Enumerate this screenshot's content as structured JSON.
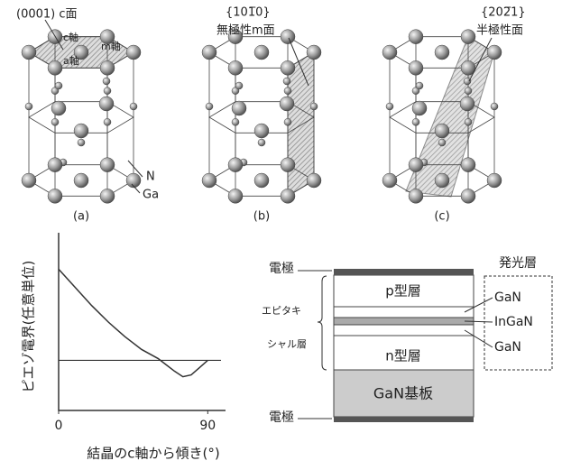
{
  "crystals": [
    {
      "label": "(a)",
      "plane": "(0001) c面",
      "axes": [
        "c軸",
        "m軸",
        "a軸"
      ],
      "atoms": [
        "N",
        "Ga"
      ]
    },
    {
      "label": "(b)",
      "plane": "{101̅0}",
      "plane_name": "無極性m面"
    },
    {
      "label": "(c)",
      "plane": "{202̅1}",
      "plane_name": "半極性面"
    }
  ],
  "chart_data": {
    "type": "line",
    "y_label": "ピエゾ電界(任意単位)",
    "x_label": "結晶のc軸から傾き(°)",
    "x": [
      0,
      10,
      20,
      30,
      40,
      50,
      60,
      65,
      70,
      75,
      80,
      85,
      90
    ],
    "values": [
      1.0,
      0.8,
      0.6,
      0.42,
      0.26,
      0.12,
      0.02,
      -0.05,
      -0.12,
      -0.18,
      -0.16,
      -0.08,
      0
    ],
    "color": "#333333",
    "hlines": [
      0
    ],
    "xlim": [
      0,
      98
    ],
    "ylim": [
      -0.55,
      1.4
    ],
    "xticks": [
      0,
      90
    ]
  },
  "device": {
    "electrode_top": "電極",
    "electrode_bottom": "電極",
    "layers": [
      "p型層",
      "GaN",
      "InGaN",
      "GaN",
      "n型層",
      "GaN基板"
    ],
    "epitaxial_label": [
      "エピタキ",
      "シャル層"
    ],
    "active_layer_label": "発光層"
  }
}
